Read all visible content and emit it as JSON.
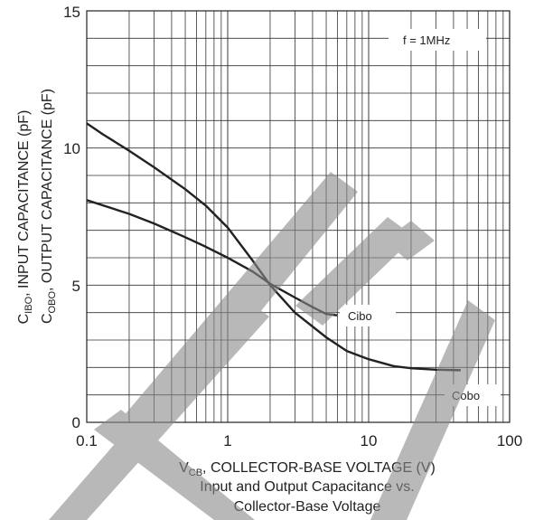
{
  "chart_data": {
    "type": "line",
    "title": "Input and Output Capacitance vs. Collector-Base Voltage",
    "title_lines": [
      "Input and Output Capacitance vs.",
      "Collector-Base Voltage"
    ],
    "x_scale": "log",
    "xlim": [
      0.1,
      100
    ],
    "ylim": [
      0,
      15
    ],
    "x_ticks": [
      "0.1",
      "1",
      "10",
      "100"
    ],
    "y_ticks": [
      "0",
      "5",
      "10",
      "15"
    ],
    "xlabel": {
      "main": "V",
      "sub": "CB",
      "rest": ", COLLECTOR-BASE VOLTAGE (V)"
    },
    "ylabel_1": {
      "main": "C",
      "sub": "IBO",
      "rest": ", INPUT CAPACITANCE (pF)"
    },
    "ylabel_2": {
      "main": "C",
      "sub": "OBO",
      "rest": ", OUTPUT CAPACITANCE (pF)"
    },
    "annotation": "f = 1MHz",
    "grid": true,
    "series": [
      {
        "name": "Cibo",
        "x": [
          0.1,
          0.13,
          0.2,
          0.3,
          0.5,
          0.7,
          1.0,
          1.5,
          2.0,
          3.0,
          5.0,
          7.0,
          10.0,
          15.0,
          20.0,
          30.0,
          45.0
        ],
        "values": [
          10.9,
          10.5,
          9.9,
          9.3,
          8.5,
          7.9,
          7.1,
          5.9,
          5.0,
          4.0,
          3.1,
          2.6,
          2.3,
          2.05,
          1.97,
          1.92,
          1.9
        ]
      },
      {
        "name": "Cobo",
        "x": [
          0.1,
          0.2,
          0.3,
          0.5,
          0.7,
          1.0,
          1.5,
          2.0,
          3.0,
          4.0,
          5.0,
          6.0
        ],
        "values": [
          8.1,
          7.6,
          7.25,
          6.75,
          6.4,
          6.0,
          5.5,
          5.05,
          4.55,
          4.2,
          3.95,
          3.9
        ]
      }
    ],
    "series_labels": [
      "Cibo",
      "Cobo"
    ]
  }
}
